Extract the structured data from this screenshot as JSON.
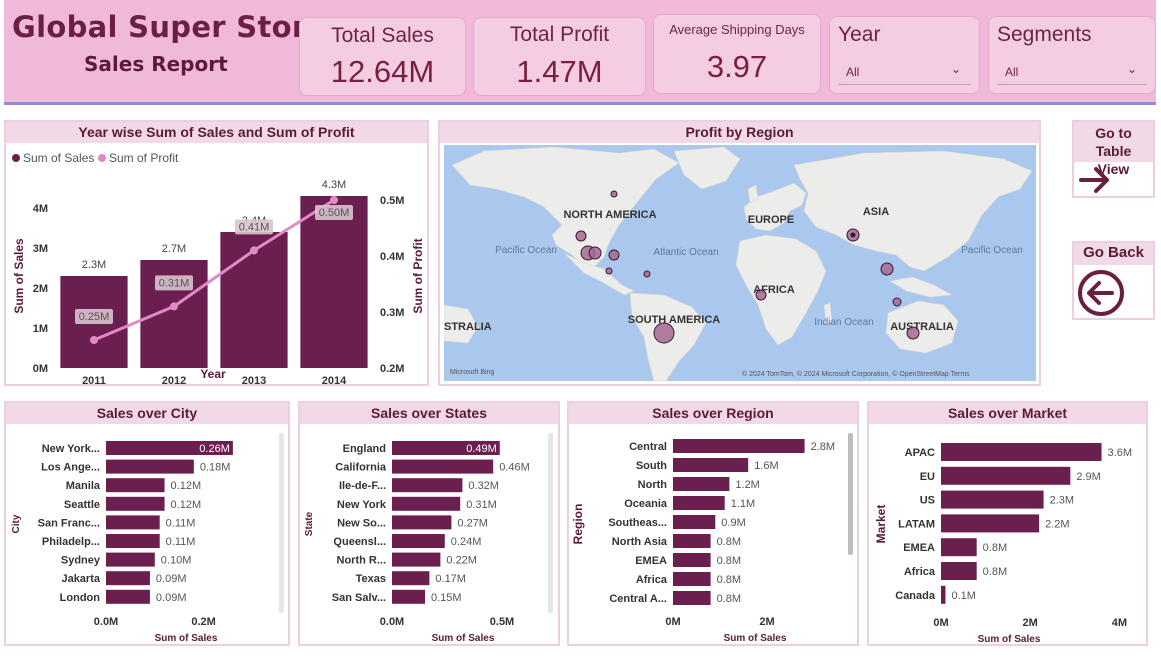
{
  "header": {
    "title": "Global Super Store",
    "subtitle": "Sales Report"
  },
  "kpis": {
    "total_sales": {
      "label": "Total Sales",
      "value": "12.64M"
    },
    "total_profit": {
      "label": "Total Profit",
      "value": "1.47M"
    },
    "avg_shipping": {
      "label": "Average Shipping Days",
      "value": "3.97"
    }
  },
  "slicers": {
    "year": {
      "label": "Year",
      "selected": "All"
    },
    "segments": {
      "label": "Segments",
      "selected": "All"
    }
  },
  "nav": {
    "table_view": {
      "label": "Go to Table View",
      "icon": "arrow-right-icon"
    },
    "go_back": {
      "label": "Go Back",
      "icon": "circle-arrow-left-icon"
    }
  },
  "map": {
    "title": "Profit by Region",
    "labels": {
      "north_america": "NORTH AMERICA",
      "europe": "EUROPE",
      "asia": "ASIA",
      "africa": "AFRICA",
      "south_america": "SOUTH AMERICA",
      "australia": "AUSTRALIA",
      "australia_left": "STRALIA",
      "pacific_left": "Pacific Ocean",
      "pacific_right": "Pacific Ocean",
      "atlantic": "Atlantic Ocean",
      "indian": "Indian Ocean"
    },
    "attribution": "© 2024 TomTom, © 2024 Microsoft Corporation, © OpenStreetMap  Terms",
    "brand": "Microsoft Bing"
  },
  "colors": {
    "header_bg": "#f0b9d9",
    "bar": "#6b1f4f",
    "line": "#e38ac6",
    "panel_title_bg": "#f2d9e7"
  },
  "chart_data": [
    {
      "type": "bar",
      "title": "Year wise Sum of Sales and Sum of Profit",
      "xlabel": "Year",
      "ylabel": "Sum of Sales",
      "y2label": "Sum of Profit",
      "categories": [
        "2011",
        "2012",
        "2013",
        "2014"
      ],
      "series": [
        {
          "name": "Sum of Sales",
          "type": "bar",
          "values": [
            2.3,
            2.7,
            3.4,
            4.3
          ],
          "labels": [
            "2.3M",
            "2.7M",
            "3.4M",
            "4.3M"
          ]
        },
        {
          "name": "Sum of Profit",
          "type": "line",
          "values": [
            0.25,
            0.31,
            0.41,
            0.5
          ],
          "labels": [
            "0.25M",
            "0.31M",
            "0.41M",
            "0.50M"
          ]
        }
      ],
      "ylim": [
        0,
        4.3
      ],
      "y2lim": [
        0.2,
        0.5
      ],
      "yticks": [
        "0M",
        "1M",
        "2M",
        "3M",
        "4M"
      ],
      "y2ticks": [
        "0.2M",
        "0.3M",
        "0.4M",
        "0.5M"
      ],
      "legend": "top-left"
    },
    {
      "type": "bar",
      "orientation": "horizontal",
      "title": "Sales over City",
      "xlabel": "Sum of Sales",
      "ylabel": "City",
      "categories": [
        "New York...",
        "Los Ange...",
        "Manila",
        "Seattle",
        "San Franc...",
        "Philadelp...",
        "Sydney",
        "Jakarta",
        "London"
      ],
      "values": [
        0.26,
        0.18,
        0.12,
        0.12,
        0.11,
        0.11,
        0.1,
        0.09,
        0.09
      ],
      "labels": [
        "0.26M",
        "0.18M",
        "0.12M",
        "0.12M",
        "0.11M",
        "0.11M",
        "0.10M",
        "0.09M",
        "0.09M"
      ],
      "xticks": [
        "0.0M",
        "0.2M"
      ],
      "xmax": 0.2
    },
    {
      "type": "bar",
      "orientation": "horizontal",
      "title": "Sales over States",
      "xlabel": "Sum of Sales",
      "ylabel": "State",
      "categories": [
        "England",
        "California",
        "Ile-de-F...",
        "New York",
        "New So...",
        "Queensl...",
        "North R...",
        "Texas",
        "San Salv..."
      ],
      "values": [
        0.49,
        0.46,
        0.32,
        0.31,
        0.27,
        0.24,
        0.22,
        0.17,
        0.15
      ],
      "labels": [
        "0.49M",
        "0.46M",
        "0.32M",
        "0.31M",
        "0.27M",
        "0.24M",
        "0.22M",
        "0.17M",
        "0.15M"
      ],
      "xticks": [
        "0.0M",
        "0.5M"
      ],
      "xmax": 0.5
    },
    {
      "type": "bar",
      "orientation": "horizontal",
      "title": "Sales over Region",
      "xlabel": "Sum of Sales",
      "ylabel": "Region",
      "categories": [
        "Central",
        "South",
        "North",
        "Oceania",
        "Southeas...",
        "North Asia",
        "EMEA",
        "Africa",
        "Central A..."
      ],
      "values": [
        2.8,
        1.6,
        1.2,
        1.1,
        0.9,
        0.8,
        0.8,
        0.8,
        0.8
      ],
      "labels": [
        "2.8M",
        "1.6M",
        "1.2M",
        "1.1M",
        "0.9M",
        "0.8M",
        "0.8M",
        "0.8M",
        "0.8M"
      ],
      "xticks": [
        "0M",
        "2M"
      ],
      "xmax": 2
    },
    {
      "type": "bar",
      "orientation": "horizontal",
      "title": "Sales over Market",
      "xlabel": "Sum of Sales",
      "ylabel": "Market",
      "categories": [
        "APAC",
        "EU",
        "US",
        "LATAM",
        "EMEA",
        "Africa",
        "Canada"
      ],
      "values": [
        3.6,
        2.9,
        2.3,
        2.2,
        0.8,
        0.8,
        0.1
      ],
      "labels": [
        "3.6M",
        "2.9M",
        "2.3M",
        "2.2M",
        "0.8M",
        "0.8M",
        "0.1M"
      ],
      "xticks": [
        "0M",
        "2M",
        "4M"
      ],
      "xmax": 4
    }
  ]
}
